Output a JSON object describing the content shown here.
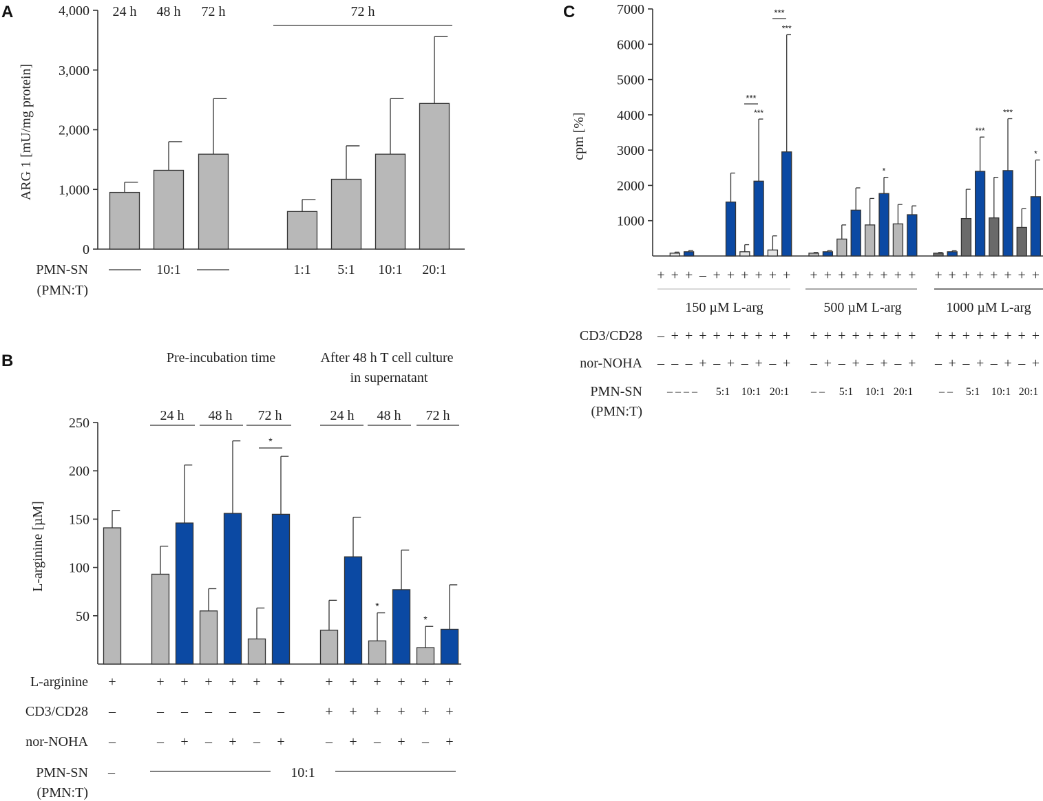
{
  "colors": {
    "gray": "#b8b8b8",
    "blue": "#0b49a3",
    "dark_gray": "#6a6a6a",
    "light_gray": "#e6e6e6"
  },
  "panels": {
    "a": {
      "letter": "A"
    },
    "b": {
      "letter": "B"
    },
    "c": {
      "letter": "C"
    }
  },
  "chart_data": [
    {
      "id": "A",
      "type": "bar",
      "ylabel": "ARG 1 [mU/mg protein]",
      "ylim": [
        0,
        4000
      ],
      "yticks": [
        "0",
        "1,000",
        "2,000",
        "3,000",
        "4,000"
      ],
      "top_labels": [
        "24 h",
        "48 h",
        "72 h"
      ],
      "group_label": "72 h",
      "row_label_line1": "PMN-SN",
      "row_label_line2": "(PMN:T)",
      "shared_ratio": "10:1",
      "ratios": [
        "1:1",
        "5:1",
        "10:1",
        "20:1"
      ],
      "values": [
        950,
        1320,
        1590,
        630,
        1170,
        1590,
        2440
      ],
      "errors": [
        170,
        480,
        930,
        200,
        560,
        930,
        1120
      ],
      "colors": [
        "gray",
        "gray",
        "gray",
        "gray",
        "gray",
        "gray",
        "gray"
      ]
    },
    {
      "id": "B",
      "type": "bar",
      "ylabel": "L-arginine [µM]",
      "ylim": [
        0,
        250
      ],
      "yticks": [
        "50",
        "100",
        "150",
        "200",
        "250"
      ],
      "header_left": "Pre-incubation time",
      "header_right_line1": "After 48 h T cell culture",
      "header_right_line2": "in supernatant",
      "time_labels": [
        "24 h",
        "48 h",
        "72 h",
        "24 h",
        "48 h",
        "72 h"
      ],
      "values": [
        141,
        93,
        146,
        55,
        156,
        26,
        155,
        35,
        111,
        24,
        77,
        17,
        36
      ],
      "errors": [
        18,
        29,
        60,
        23,
        75,
        32,
        60,
        31,
        41,
        29,
        41,
        22,
        46
      ],
      "colors": [
        "gray",
        "gray",
        "blue",
        "gray",
        "blue",
        "gray",
        "blue",
        "gray",
        "blue",
        "gray",
        "blue",
        "gray",
        "blue"
      ],
      "stars": [
        "",
        "",
        "",
        "",
        "",
        "",
        "",
        "",
        "",
        "*",
        "",
        "*",
        ""
      ],
      "bracket_star": "*",
      "rows": [
        {
          "label": "L-arginine",
          "marks": [
            "+",
            "+",
            "+",
            "+",
            "+",
            "+",
            "+",
            "+",
            "+",
            "+",
            "+",
            "+",
            "+"
          ]
        },
        {
          "label": "CD3/CD28",
          "marks": [
            "–",
            "–",
            "–",
            "–",
            "–",
            "–",
            "–",
            "+",
            "+",
            "+",
            "+",
            "+",
            "+"
          ]
        },
        {
          "label": "nor-NOHA",
          "marks": [
            "–",
            "–",
            "+",
            "–",
            "+",
            "–",
            "+",
            "–",
            "+",
            "–",
            "+",
            "–",
            "+"
          ]
        }
      ],
      "pmn_label_line1": "PMN-SN",
      "pmn_label_line2": "(PMN:T)",
      "pmn_first": "–",
      "pmn_ratio": "10:1"
    },
    {
      "id": "C",
      "type": "bar",
      "ylabel": "cpm [%]",
      "ylim": [
        0,
        7000
      ],
      "yticks": [
        "1000",
        "2000",
        "3000",
        "4000",
        "5000",
        "6000",
        "7000"
      ],
      "group_labels": [
        "150 µM L-arg",
        "500 µM L-arg",
        "1000 µM L-arg"
      ],
      "values": [
        0,
        80,
        120,
        0,
        0,
        1530,
        120,
        2120,
        170,
        2950,
        80,
        120,
        480,
        1300,
        880,
        1770,
        910,
        1170,
        80,
        120,
        1060,
        2400,
        1080,
        2420,
        810,
        1680
      ],
      "errors": [
        0,
        30,
        40,
        0,
        0,
        820,
        200,
        1760,
        400,
        3320,
        20,
        40,
        400,
        630,
        750,
        460,
        550,
        250,
        20,
        30,
        830,
        970,
        1150,
        1470,
        530,
        1040
      ],
      "colors": [
        "light_gray",
        "light_gray",
        "blue",
        "light_gray",
        "light_gray",
        "blue",
        "light_gray",
        "blue",
        "light_gray",
        "blue",
        "gray",
        "blue",
        "gray",
        "blue",
        "gray",
        "blue",
        "gray",
        "blue",
        "dark_gray",
        "blue",
        "dark_gray",
        "blue",
        "dark_gray",
        "blue",
        "dark_gray",
        "blue"
      ],
      "stars": [
        "",
        "",
        "",
        "",
        "",
        "",
        "",
        "***",
        "",
        "***",
        "",
        "",
        "",
        "",
        "",
        "*",
        "",
        "",
        "",
        "",
        "",
        "***",
        "",
        "***",
        "",
        "*"
      ],
      "bracket_stars": [
        "***",
        "***"
      ],
      "plus_row": [
        "+",
        "+",
        "+",
        "–",
        "+",
        "+",
        "+",
        "+",
        "+",
        "+",
        "+",
        "+",
        "+",
        "+",
        "+",
        "+",
        "+",
        "+",
        "+",
        "+",
        "+",
        "+",
        "+",
        "+",
        "+",
        "+"
      ],
      "rows": [
        {
          "label": "CD3/CD28",
          "marks": [
            "–",
            "+",
            "+",
            "+",
            "+",
            "+",
            "+",
            "+",
            "+",
            "+",
            "+",
            "+",
            "+",
            "+",
            "+",
            "+",
            "+",
            "+",
            "+",
            "+",
            "+",
            "+",
            "+",
            "+",
            "+",
            "+"
          ]
        },
        {
          "label": "nor-NOHA",
          "marks": [
            "–",
            "–",
            "–",
            "+",
            "–",
            "+",
            "–",
            "+",
            "–",
            "+",
            "–",
            "+",
            "–",
            "+",
            "–",
            "+",
            "–",
            "+",
            "–",
            "+",
            "–",
            "+",
            "–",
            "+",
            "–",
            "+"
          ]
        }
      ],
      "pmn_label_line1": "PMN-SN",
      "pmn_label_line2": "(PMN:T)",
      "pmn_dashes": [
        "– – – –",
        "– –",
        "– –"
      ],
      "pmn_ratios": [
        "5:1",
        "10:1",
        "20:1"
      ]
    }
  ]
}
